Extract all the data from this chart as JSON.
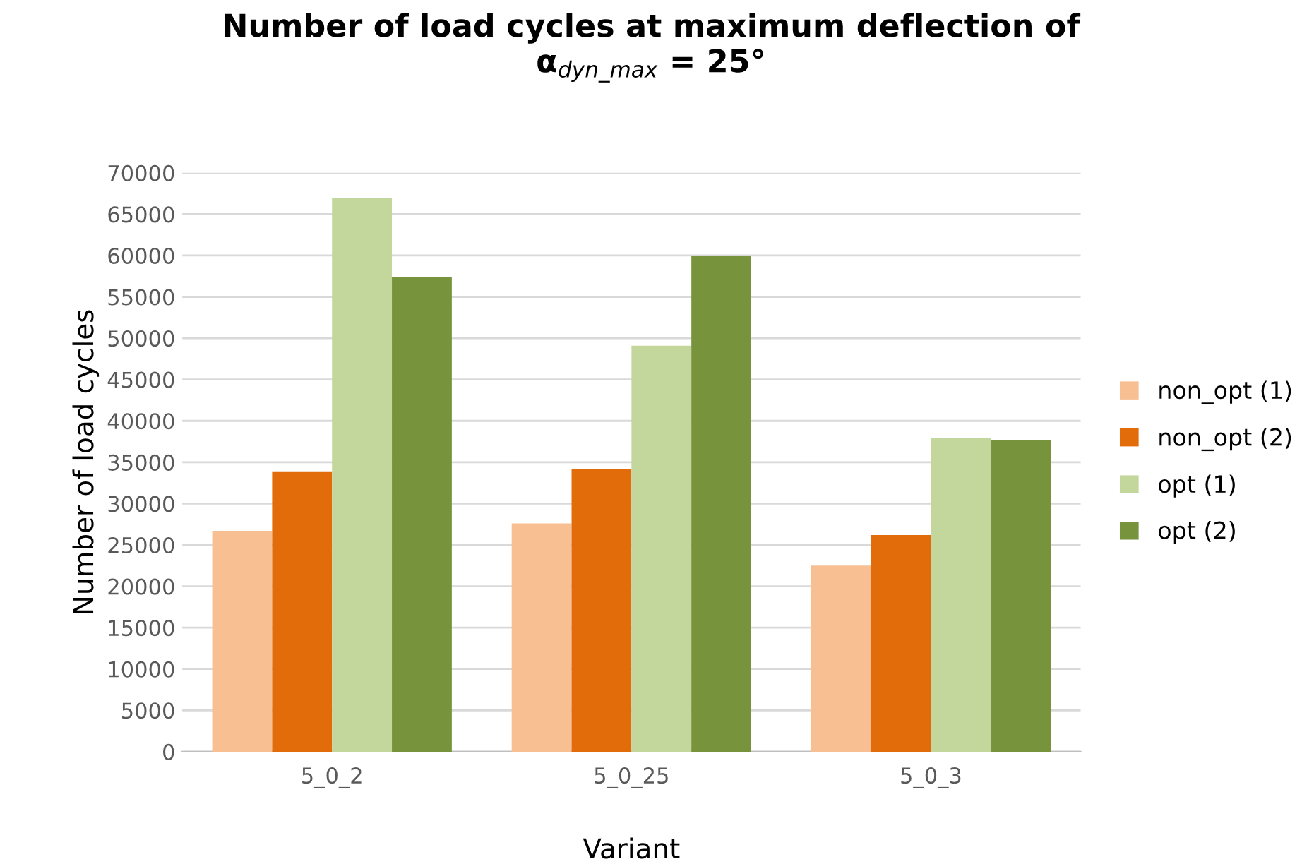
{
  "chart_data": {
    "type": "bar",
    "title": "Number of load cycles at maximum deflection of\nα$_{dyn_max}$ = 25°",
    "xlabel": "Variant",
    "ylabel": "Number of load cycles",
    "categories": [
      "5_0_2",
      "5_0_25",
      "5_0_3"
    ],
    "series": [
      {
        "name": "non_opt (1)",
        "color": "#f8bf92",
        "values": [
          26700,
          27600,
          22500
        ]
      },
      {
        "name": "non_opt (2)",
        "color": "#e36c0a",
        "values": [
          33900,
          34200,
          26200
        ]
      },
      {
        "name": "opt (1)",
        "color": "#c3d69b",
        "values": [
          66900,
          49100,
          37900
        ]
      },
      {
        "name": "opt (2)",
        "color": "#77933c",
        "values": [
          57400,
          60000,
          37700
        ]
      }
    ],
    "ylim": [
      0,
      70000
    ],
    "yticks": [
      0,
      5000,
      10000,
      15000,
      20000,
      25000,
      30000,
      35000,
      40000,
      45000,
      50000,
      55000,
      60000,
      65000,
      70000
    ],
    "grid": "y",
    "legend": "right"
  }
}
